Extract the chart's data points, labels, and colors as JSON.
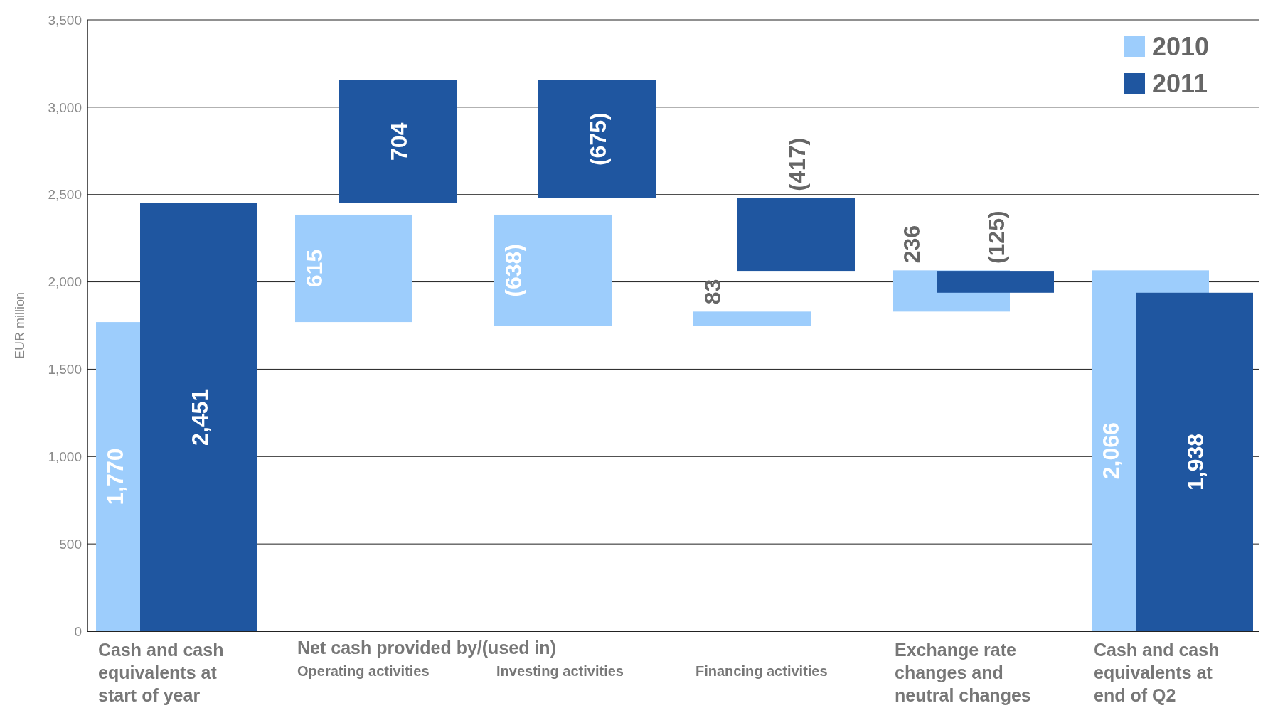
{
  "chart_data": {
    "type": "bar",
    "ylabel": "EUR million",
    "categories": [
      "Cash and cash equivalents at start of year",
      "Operating activities",
      "Investing activities",
      "Financing activities",
      "Exchange rate changes and neutral changes",
      "Cash and cash equivalents at end of Q2"
    ],
    "annotations": [
      "Net cash provided by/(used in)"
    ],
    "series": [
      {
        "name": "2010",
        "color": "#9dcdfc",
        "base": [
          0,
          1770,
          2385,
          1747,
          1830,
          0
        ],
        "values": [
          1770,
          615,
          -638,
          83,
          236,
          2066
        ],
        "value_labels": [
          "1,770",
          "615",
          "(638)",
          "83",
          "236",
          "2,066"
        ]
      },
      {
        "name": "2011",
        "color": "#1f56a0",
        "base": [
          0,
          2451,
          3155,
          2480,
          2063,
          0
        ],
        "values": [
          2451,
          704,
          -675,
          -417,
          -125,
          1938
        ],
        "value_labels": [
          "2,451",
          "704",
          "(675)",
          "(417)",
          "(125)",
          "1,938"
        ]
      }
    ],
    "ylim": [
      0,
      3500
    ],
    "yticks": [
      {
        "value": 0,
        "label": "0"
      },
      {
        "value": 500,
        "label": "500"
      },
      {
        "value": 1000,
        "label": "1,000"
      },
      {
        "value": 1500,
        "label": "1,500"
      },
      {
        "value": 2000,
        "label": "2,000"
      },
      {
        "value": 2500,
        "label": "2,500"
      },
      {
        "value": 3000,
        "label": "3,000"
      },
      {
        "value": 3500,
        "label": "3,500"
      }
    ],
    "grid": "y",
    "legend": "top right"
  }
}
